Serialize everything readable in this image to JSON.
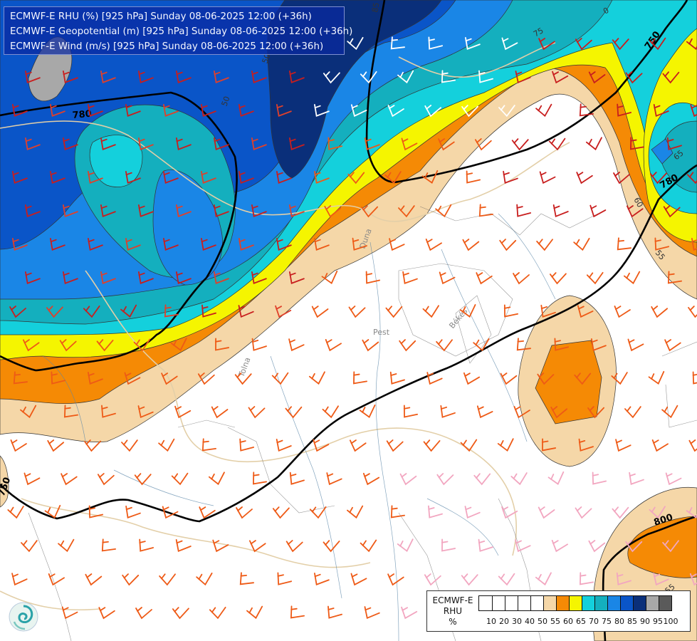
{
  "title_lines": [
    "ECMWF-E RHU (%) [925 hPa] Sunday 08-06-2025 12:00 (+36h)",
    "ECMWF-E Geopotential (m) [925 hPa] Sunday 08-06-2025 12:00 (+36h)",
    "ECMWF-E Wind (m/s) [925 hPa] Sunday 08-06-2025 12:00 (+36h)"
  ],
  "legend": {
    "title_line1": "ECMWF-E",
    "title_line2": "RHU",
    "title_line3": "%",
    "colors": [
      "#ffffff",
      "#ffffff",
      "#ffffff",
      "#ffffff",
      "#ffffff",
      "#f5d7a8",
      "#f58a05",
      "#f5f500",
      "#14d0dc",
      "#14afbe",
      "#1a86e6",
      "#0a55c8",
      "#0a2f7a",
      "#a8a8a8",
      "#5a5a5a"
    ],
    "tick_labels": [
      "10",
      "20",
      "30",
      "40",
      "50",
      "55",
      "60",
      "65",
      "70",
      "75",
      "80",
      "85",
      "90",
      "95",
      "100"
    ]
  },
  "contour_labels": [
    "780",
    "750",
    "780",
    "750",
    "800"
  ],
  "rh_labels": [
    "85",
    "75",
    "0",
    "65",
    "60",
    "55",
    "55",
    "50",
    "50"
  ],
  "place_labels": [
    "Pest",
    "Békés",
    "Tolna",
    "Duna"
  ],
  "logo_icon": "ecmwf-swirl-icon"
}
